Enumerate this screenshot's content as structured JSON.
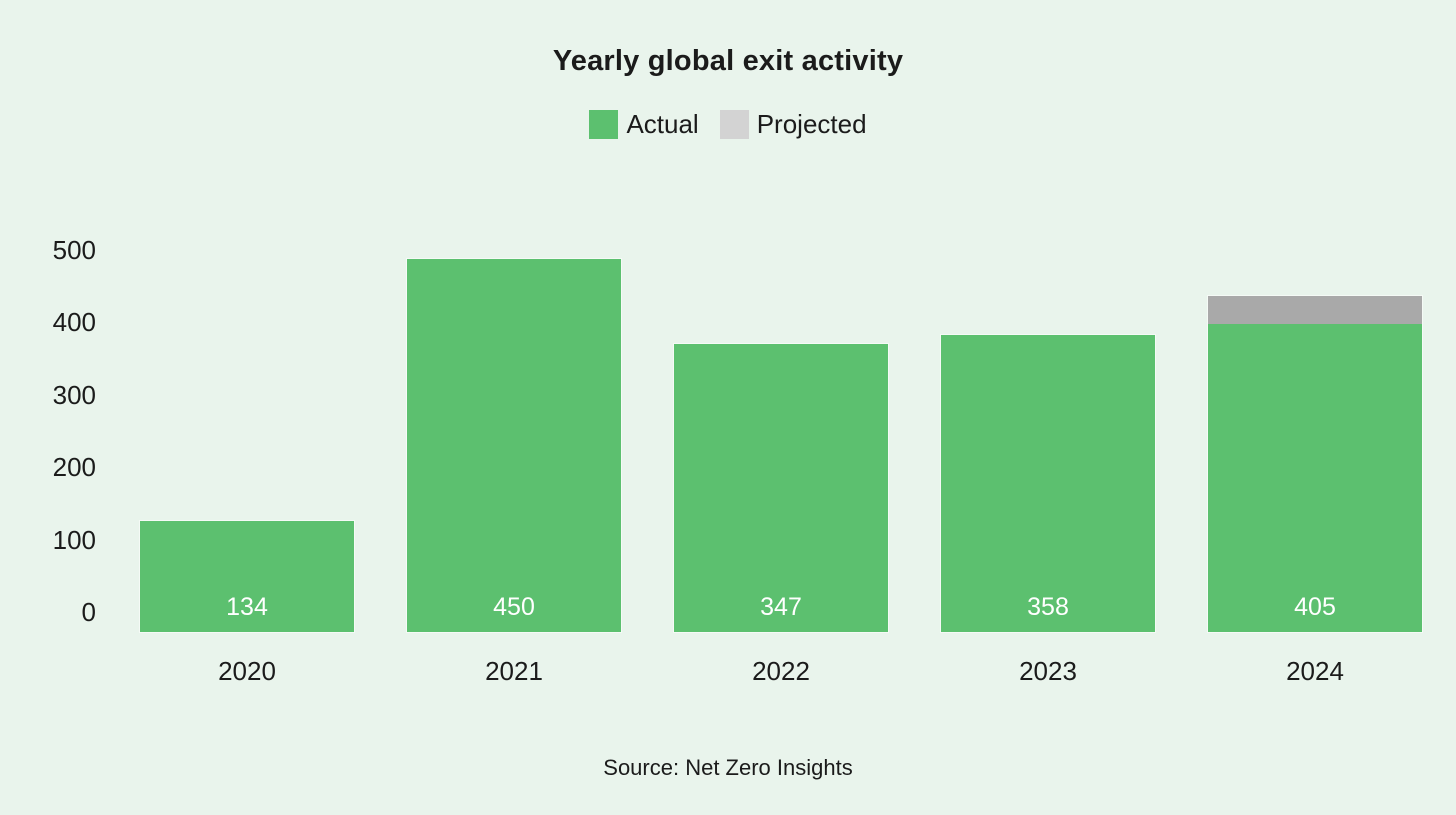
{
  "title": "Yearly global exit activity",
  "legend": [
    {
      "label": "Actual",
      "color": "#5cc06f"
    },
    {
      "label": "Projected",
      "color": "#d3d3d3"
    }
  ],
  "source": "Source: Net Zero Insights",
  "colors": {
    "background": "#e9f4ec",
    "actual_bar": "#5cc06f",
    "projected_bar": "#a9a9a9",
    "text": "#1b1b1b",
    "bar_label": "#ffffff"
  },
  "chart_data": {
    "type": "bar",
    "stacked": true,
    "title": "Yearly global exit activity",
    "xlabel": "",
    "ylabel": "",
    "categories": [
      "2020",
      "2021",
      "2022",
      "2023",
      "2024"
    ],
    "series": [
      {
        "name": "Actual",
        "values": [
          134,
          450,
          347,
          358,
          371
        ]
      },
      {
        "name": "Projected",
        "values": [
          0,
          0,
          0,
          0,
          34
        ]
      }
    ],
    "bar_labels": [
      "134",
      "450",
      "347",
      "358",
      "405"
    ],
    "y_ticks": [
      0,
      100,
      200,
      300,
      400,
      500
    ],
    "ylim": [
      0,
      500
    ],
    "grid": false,
    "legend_position": "top",
    "source": "Source: Net Zero Insights"
  }
}
